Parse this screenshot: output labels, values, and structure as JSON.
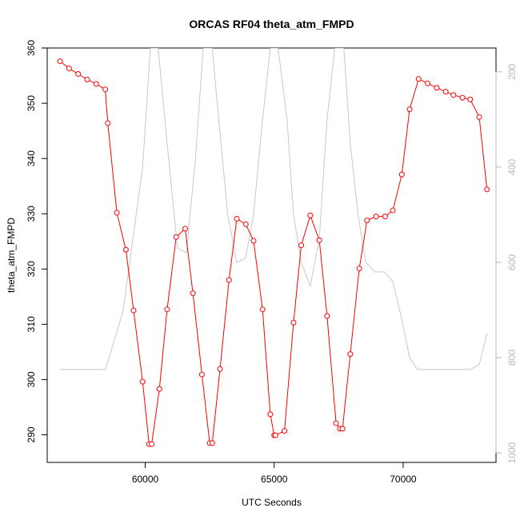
{
  "chart_data": {
    "type": "line",
    "title": "ORCAS RF04 theta_atm_FMPD",
    "xlabel": "UTC Seconds",
    "ylabel": "theta_atm_FMPD",
    "xlim": [
      56200,
      73600
    ],
    "ylim": [
      285,
      360
    ],
    "y2lim": [
      1020,
      150
    ],
    "x_ticks": [
      60000,
      65000,
      70000
    ],
    "y_ticks": [
      290,
      300,
      310,
      320,
      330,
      340,
      350,
      360
    ],
    "y2_ticks": [
      200,
      400,
      600,
      800,
      1000
    ],
    "y2_reversed": true,
    "grid": false,
    "series": [
      {
        "color": "#ff0000",
        "style": "line+points",
        "axis": "left",
        "x": [
          56700,
          57050,
          57400,
          57750,
          58100,
          58450,
          58550,
          58900,
          59250,
          59550,
          59900,
          60150,
          60250,
          60550,
          60850,
          61200,
          61550,
          61850,
          62200,
          62500,
          62600,
          62900,
          63250,
          63550,
          63900,
          64200,
          64550,
          64850,
          65000,
          65050,
          65400,
          65750,
          66050,
          66400,
          66750,
          67050,
          67400,
          67550,
          67650,
          67950,
          68300,
          68600,
          68950,
          69300,
          69600,
          69950,
          70250,
          70600,
          70950,
          71300,
          71650,
          71950,
          72300,
          72600,
          72950,
          73250
        ],
        "values": [
          357.6,
          356.3,
          355.3,
          354.3,
          353.5,
          352.5,
          346.4,
          330.2,
          323.5,
          312.5,
          299.6,
          288.3,
          288.3,
          298.3,
          312.7,
          325.8,
          327.3,
          315.6,
          300.9,
          288.5,
          288.5,
          301.9,
          318.0,
          329.1,
          328.1,
          325.1,
          312.7,
          293.7,
          289.9,
          289.9,
          290.7,
          310.3,
          324.3,
          329.7,
          325.2,
          311.5,
          292.1,
          291.1,
          291.1,
          304.6,
          320.1,
          328.8,
          329.5,
          329.5,
          330.6,
          337.1,
          348.9,
          354.4,
          353.6,
          352.8,
          352.1,
          351.5,
          351.0,
          350.7,
          347.5,
          334.4
        ]
      },
      {
        "color": "#c8c8c8",
        "style": "line",
        "axis": "right",
        "x": [
          56700,
          58450,
          58600,
          59150,
          59900,
          60200,
          60500,
          60850,
          61250,
          61600,
          61950,
          62250,
          62500,
          62600,
          62850,
          63200,
          63550,
          63900,
          64200,
          64550,
          64850,
          65150,
          65500,
          65750,
          66050,
          66400,
          66750,
          67050,
          67350,
          67550,
          67700,
          67950,
          68250,
          68550,
          68900,
          69250,
          69600,
          69950,
          70250,
          70550,
          72600,
          72950,
          73250
        ],
        "values": [
          825,
          825,
          800,
          700,
          400,
          150,
          150,
          350,
          570,
          580,
          380,
          150,
          150,
          150,
          300,
          500,
          600,
          590,
          500,
          300,
          150,
          150,
          300,
          500,
          600,
          650,
          550,
          300,
          150,
          150,
          150,
          350,
          500,
          600,
          620,
          620,
          640,
          720,
          800,
          825,
          825,
          815,
          750
        ]
      }
    ]
  }
}
